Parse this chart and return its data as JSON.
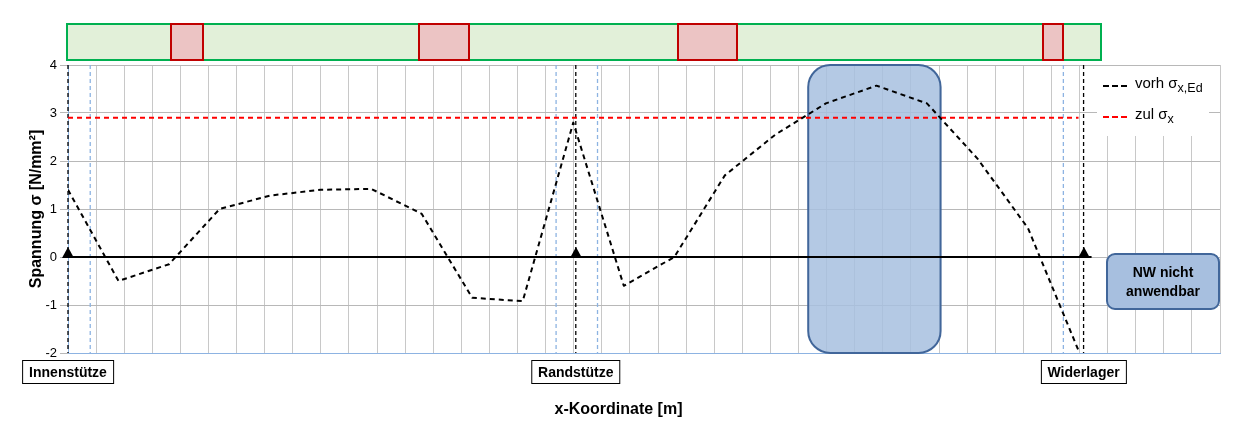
{
  "chart_data": {
    "type": "line",
    "ylabel": "Spannung σ [N/mm²]",
    "xlabel": "x-Koordinate [m]",
    "categories": [
      null,
      null,
      null,
      null,
      null,
      null,
      null,
      null,
      null,
      null,
      null,
      null,
      null,
      null,
      null,
      null,
      null,
      null,
      null,
      null,
      null
    ],
    "ylim": [
      -2,
      4
    ],
    "yticks": [
      -2,
      -1,
      0,
      1,
      2,
      3,
      4
    ],
    "tick_labels": "y",
    "grid": true,
    "legend": "top right",
    "line_style": "dashed",
    "marker": "none",
    "series": [
      {
        "name": "vorh σ$_{x,Ed}$",
        "color": "#000000",
        "values": [
          1.4,
          -0.5,
          -0.15,
          1,
          1.28,
          1.4,
          1.42,
          0.9,
          -0.85,
          -0.92,
          2.8,
          -0.6,
          0,
          1.7,
          2.55,
          3.2,
          3.57,
          3.2,
          2.05,
          0.6,
          -1.95
        ]
      },
      {
        "name": "zul σ$_{x}$",
        "color": "#ff0000",
        "values": [
          2.9,
          2.9,
          2.9,
          2.9,
          2.9,
          2.9,
          2.9,
          2.9,
          2.9,
          2.9,
          2.9,
          2.9,
          2.9,
          2.9,
          2.9,
          2.9,
          2.9,
          2.9,
          2.9,
          2.9,
          2.9
        ]
      }
    ],
    "ref_lines": [
      {
        "axis": "y",
        "value": 0,
        "color": "#000000",
        "line_style": "solid"
      }
    ],
    "annotations": [
      "Innenstütze",
      "Randstütze",
      "Widerlager",
      "NW nicht anwendbar"
    ]
  }
}
